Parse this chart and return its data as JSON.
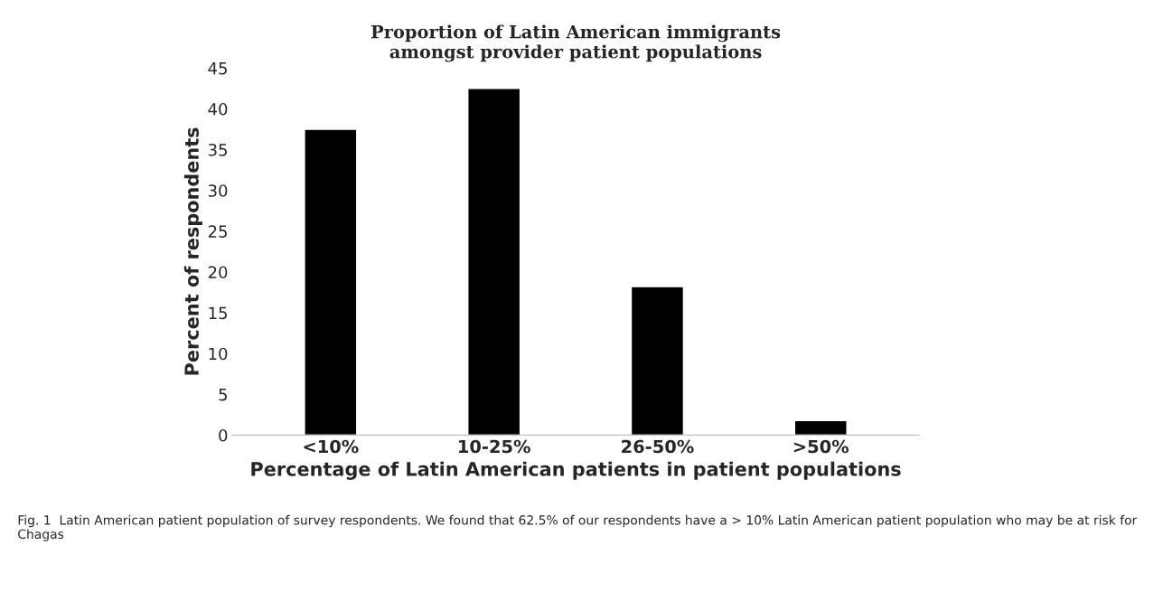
{
  "chart_data": {
    "type": "bar",
    "title": "Proportion of Latin American immigrants\namongst provider patient populations",
    "xlabel": "Percentage of Latin American patients in patient populations",
    "ylabel": "Percent of respondents",
    "categories": [
      "<10%",
      "10-25%",
      "26-50%",
      ">50%"
    ],
    "values": [
      37.5,
      42.5,
      18.2,
      1.8
    ],
    "color": "#000000",
    "ylim": [
      0,
      45
    ],
    "yticks": [
      0,
      5,
      10,
      15,
      20,
      25,
      30,
      35,
      40,
      45
    ],
    "grid": false,
    "annotations": [
      "Fig. 1  Latin American patient population of survey respondents. We found that 62.5% of our respondents have a > 10% Latin American patient population who may be at risk for Chagas"
    ]
  }
}
